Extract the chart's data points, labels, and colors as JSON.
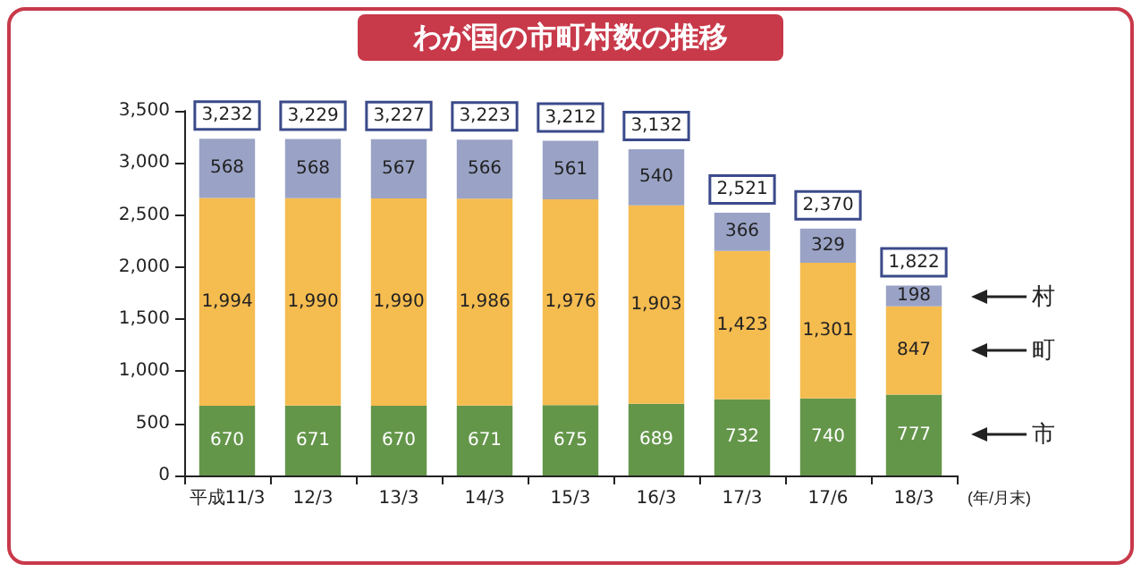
{
  "chart_data": {
    "type": "bar",
    "title": "わが国の市町村数の推移",
    "xlabel": "(年/月末)",
    "stacked": true,
    "categories": [
      "平成11/3",
      "12/3",
      "13/3",
      "14/3",
      "15/3",
      "16/3",
      "17/3",
      "17/6",
      "18/3"
    ],
    "series": [
      {
        "name": "市",
        "color": "#64964a",
        "values": [
          670,
          671,
          670,
          671,
          675,
          689,
          732,
          740,
          777
        ],
        "value_labels": [
          "670",
          "671",
          "670",
          "671",
          "675",
          "689",
          "732",
          "740",
          "777"
        ]
      },
      {
        "name": "町",
        "color": "#f5bc50",
        "values": [
          1994,
          1990,
          1990,
          1986,
          1976,
          1903,
          1423,
          1301,
          847
        ],
        "value_labels": [
          "1,994",
          "1,990",
          "1,990",
          "1,986",
          "1,976",
          "1,903",
          "1,423",
          "1,301",
          "847"
        ]
      },
      {
        "name": "村",
        "color": "#9aa3c6",
        "values": [
          568,
          568,
          567,
          566,
          561,
          540,
          366,
          329,
          198
        ],
        "value_labels": [
          "568",
          "568",
          "567",
          "566",
          "561",
          "540",
          "366",
          "329",
          "198"
        ]
      }
    ],
    "totals": [
      "3,232",
      "3,229",
      "3,227",
      "3,223",
      "3,212",
      "3,132",
      "2,521",
      "2,370",
      "1,822"
    ],
    "ylim": [
      0,
      3500
    ],
    "yticks": [
      {
        "value": 0,
        "label": "0"
      },
      {
        "value": 500,
        "label": "500"
      },
      {
        "value": 1000,
        "label": "1,000"
      },
      {
        "value": 1500,
        "label": "1,500"
      },
      {
        "value": 2000,
        "label": "2,000"
      },
      {
        "value": 2500,
        "label": "2,500"
      },
      {
        "value": 3000,
        "label": "3,000"
      },
      {
        "value": 3500,
        "label": "3,500"
      }
    ]
  }
}
